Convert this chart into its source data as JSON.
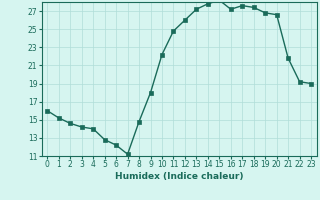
{
  "x": [
    0,
    1,
    2,
    3,
    4,
    5,
    6,
    7,
    8,
    9,
    10,
    11,
    12,
    13,
    14,
    15,
    16,
    17,
    18,
    19,
    20,
    21,
    22,
    23
  ],
  "y": [
    16.0,
    15.2,
    14.6,
    14.2,
    14.0,
    12.8,
    12.2,
    11.2,
    14.8,
    18.0,
    22.2,
    24.8,
    26.0,
    27.2,
    27.8,
    28.2,
    27.2,
    27.6,
    27.4,
    26.8,
    26.6,
    21.8,
    19.2,
    19.0
  ],
  "line_color": "#1a6b5a",
  "marker": "s",
  "markersize": 2.5,
  "linewidth": 1.0,
  "bg_color": "#d6f5f0",
  "grid_color": "#b0ddd8",
  "xlabel": "Humidex (Indice chaleur)",
  "xlim": [
    -0.5,
    23.5
  ],
  "ylim": [
    11,
    28
  ],
  "yticks": [
    11,
    13,
    15,
    17,
    19,
    21,
    23,
    25,
    27
  ],
  "xticks": [
    0,
    1,
    2,
    3,
    4,
    5,
    6,
    7,
    8,
    9,
    10,
    11,
    12,
    13,
    14,
    15,
    16,
    17,
    18,
    19,
    20,
    21,
    22,
    23
  ],
  "tick_fontsize": 5.5,
  "xlabel_fontsize": 6.5
}
